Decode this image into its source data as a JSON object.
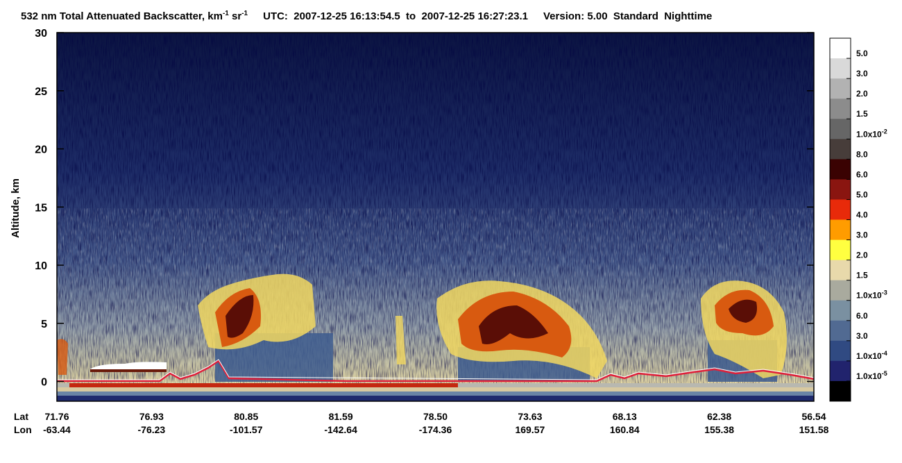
{
  "chart_data": {
    "type": "curtain",
    "title": {
      "product": "532 nm Total Attenuated Backscatter, km",
      "unit_exp_1": "-1",
      "unit_mid": " sr",
      "unit_exp_2": "-1",
      "time": "UTC:  2007-12-25 16:13:54.5  to  2007-12-25 16:27:23.1",
      "version": "Version: 5.00  Standard  Nighttime"
    },
    "y_label": "Altitude, km",
    "ylim": [
      -1.7,
      30
    ],
    "yticks": [
      0,
      5,
      10,
      15,
      20,
      25,
      30
    ],
    "x_rows": [
      {
        "name": "Lat",
        "labels": [
          "71.76",
          "76.93",
          "80.85",
          "81.59",
          "78.50",
          "73.63",
          "68.13",
          "62.38",
          "56.54"
        ]
      },
      {
        "name": "Lon",
        "labels": [
          "-63.44",
          "-76.23",
          "-101.57",
          "-142.64",
          "-174.36",
          "169.57",
          "160.84",
          "155.38",
          "151.58"
        ]
      }
    ],
    "colorbar": {
      "colors": [
        "#ffffff",
        "#d9d9d9",
        "#b2b2b2",
        "#8c8c8c",
        "#666666",
        "#473d3a",
        "#3a0202",
        "#8a1510",
        "#e82a0a",
        "#ff9c00",
        "#ffff40",
        "#e8d9ab",
        "#a9aa9e",
        "#7a90a1",
        "#516a92",
        "#304a82",
        "#21236d",
        "#000000"
      ],
      "labels": [
        {
          "mantissa": "5.0"
        },
        {
          "mantissa": "3.0"
        },
        {
          "mantissa": "2.0"
        },
        {
          "mantissa": "1.5"
        },
        {
          "mantissa": "1.0x10",
          "exponent": "-2"
        },
        {
          "mantissa": "8.0"
        },
        {
          "mantissa": "6.0"
        },
        {
          "mantissa": "5.0"
        },
        {
          "mantissa": "4.0"
        },
        {
          "mantissa": "3.0"
        },
        {
          "mantissa": "2.0"
        },
        {
          "mantissa": "1.5"
        },
        {
          "mantissa": "1.0x10",
          "exponent": "-3"
        },
        {
          "mantissa": "6.0"
        },
        {
          "mantissa": "3.0"
        },
        {
          "mantissa": "1.0x10",
          "exponent": "-4"
        },
        {
          "mantissa": "1.0x10",
          "exponent": "-5"
        }
      ]
    }
  }
}
